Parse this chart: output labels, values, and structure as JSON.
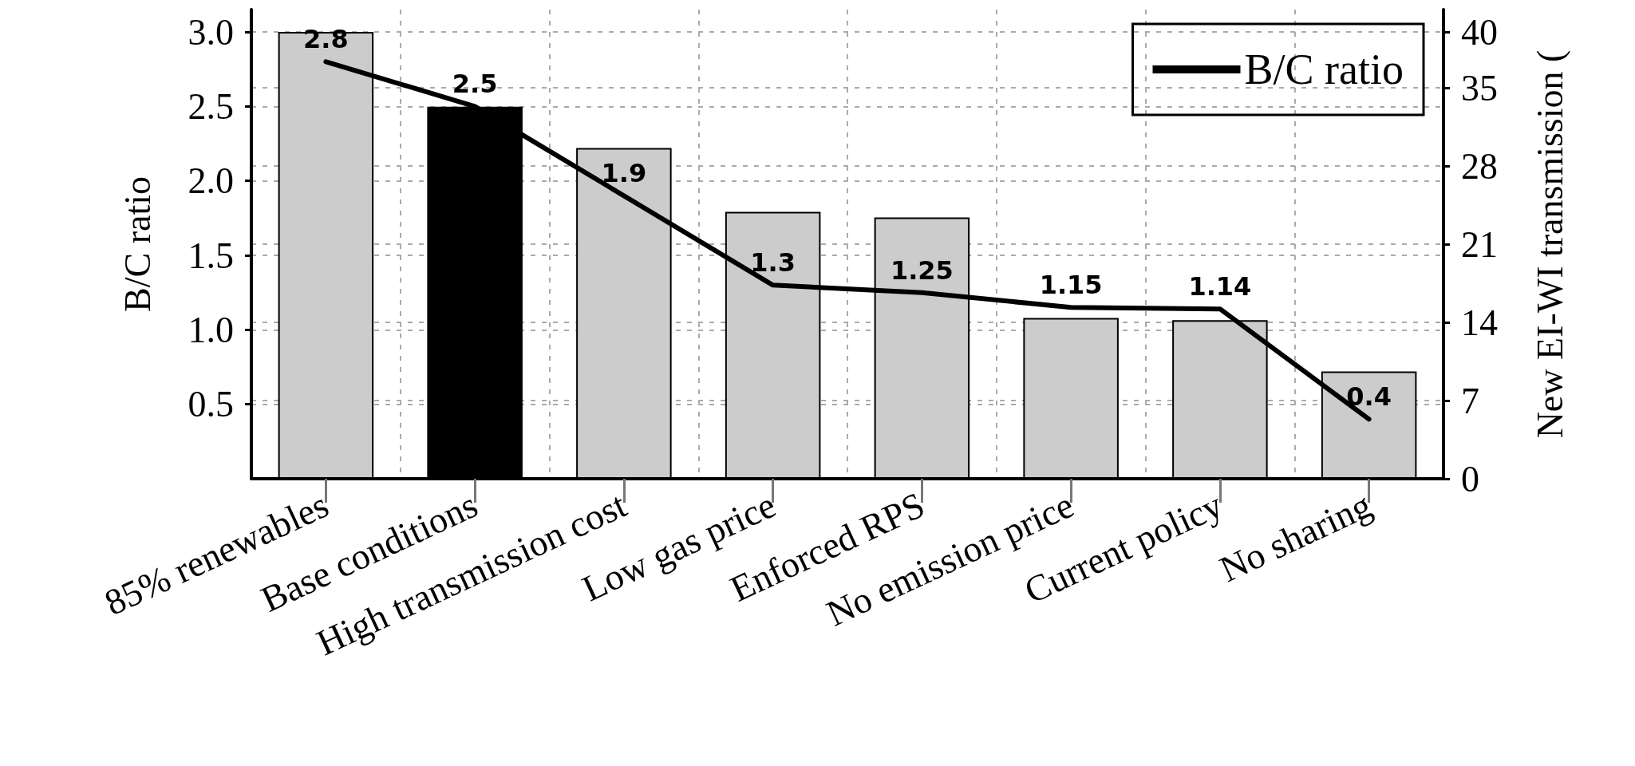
{
  "chart_data": {
    "type": "bar",
    "categories": [
      "85% renewables",
      "Base conditions",
      "High transmission cost",
      "Low gas price",
      "Enforced RPS",
      "No emission price",
      "Current policy",
      "No sharing"
    ],
    "ylabel": "B/C ratio",
    "y2label": "New EI-WI transmission (",
    "series": [
      {
        "axis": "y2",
        "colors": [
          "#cccccc",
          "#000000",
          "#cccccc",
          "#cccccc",
          "#cccccc",
          "#cccccc",
          "#cccccc",
          "#cccccc"
        ],
        "values": [
          40,
          33.3,
          29.6,
          23.9,
          23.4,
          14.4,
          14.2,
          9.6
        ]
      },
      {
        "type": "line",
        "name": "B/C ratio",
        "color": "#000000",
        "values": [
          2.8,
          2.5,
          1.9,
          1.3,
          1.25,
          1.15,
          1.14,
          0.4
        ],
        "value_labels": [
          "2.8",
          "2.5",
          "1.9",
          "1.3",
          "1.25",
          "1.15",
          "1.14",
          "0.4"
        ]
      }
    ],
    "ylim": [
      0,
      3.15
    ],
    "yticks": [
      0.5,
      {
        "value": 1,
        "label": "1.0"
      },
      1.5,
      {
        "value": 2,
        "label": "2.0"
      },
      2.5,
      {
        "value": 3,
        "label": "3.0"
      }
    ],
    "y2lim": [
      0,
      42
    ],
    "y2ticks": [
      0,
      7,
      14,
      21,
      28,
      35,
      40
    ],
    "grid": true,
    "legend": "top right",
    "marker": "none"
  }
}
